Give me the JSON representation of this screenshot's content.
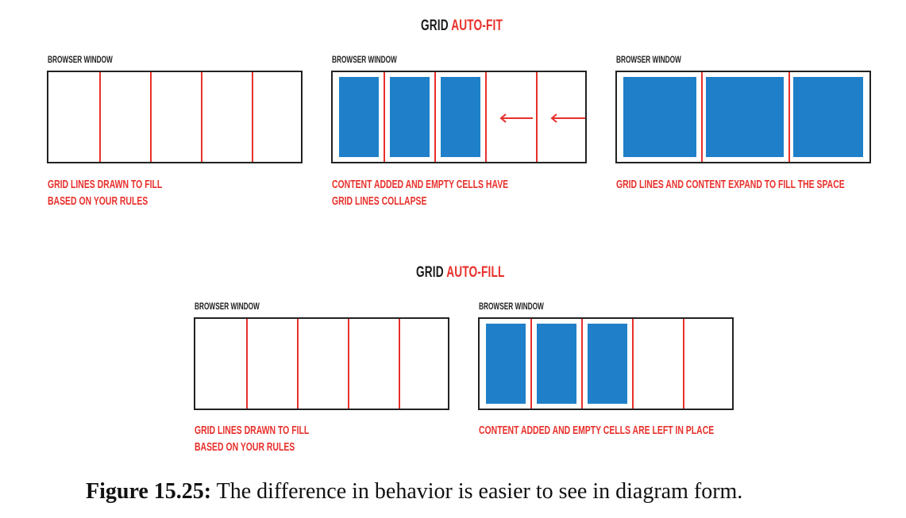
{
  "autofit": {
    "heading_prefix": "GRID",
    "heading_accent": "AUTO-FIT",
    "panels": [
      {
        "label": "BROWSER WINDOW",
        "caption_lines": [
          "GRID LINES DRAWN TO FILL",
          "BASED ON YOUR RULES"
        ]
      },
      {
        "label": "BROWSER WINDOW",
        "caption_lines": [
          "CONTENT ADDED AND EMPTY CELLS HAVE",
          "GRID LINES COLLAPSE"
        ]
      },
      {
        "label": "BROWSER WINDOW",
        "caption_lines": [
          "GRID LINES AND CONTENT EXPAND TO FILL THE SPACE"
        ]
      }
    ]
  },
  "autofill": {
    "heading_prefix": "GRID",
    "heading_accent": "AUTO-FILL",
    "panels": [
      {
        "label": "BROWSER WINDOW",
        "caption_lines": [
          "GRID LINES DRAWN TO FILL",
          "BASED ON YOUR RULES"
        ]
      },
      {
        "label": "BROWSER WINDOW",
        "caption_lines": [
          "CONTENT ADDED AND EMPTY CELLS ARE LEFT IN PLACE"
        ]
      }
    ]
  },
  "figure_caption": {
    "number": "Figure 15.25:",
    "text": " The difference in behavior is easier to see in diagram form."
  },
  "colors": {
    "accent_red": "#e8302b",
    "cell_blue": "#1f80c9",
    "border": "#222222"
  }
}
